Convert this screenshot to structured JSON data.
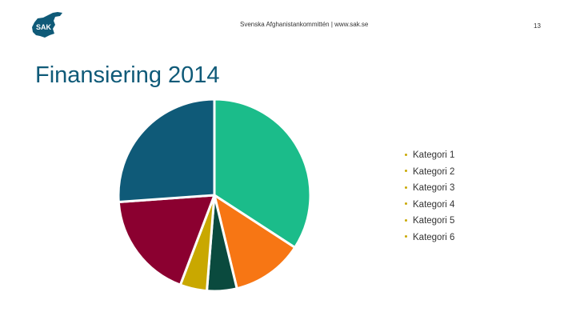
{
  "header": {
    "logo_text": "SAK",
    "org_text": "Svenska Afghanistankommittén | www.sak.se",
    "page_number": "13",
    "logo_color": "#0f5a78"
  },
  "slide": {
    "title": "Finansiering 2014"
  },
  "chart_data": {
    "type": "pie",
    "categories": [
      "Kategori 1",
      "Kategori 2",
      "Kategori 3",
      "Kategori 4",
      "Kategori 5",
      "Kategori 6"
    ],
    "values": [
      34,
      12,
      5,
      4.5,
      18,
      26
    ],
    "colors": [
      "#1bbc8a",
      "#f77614",
      "#0a4a3e",
      "#c9a800",
      "#8b0030",
      "#0f5a78"
    ],
    "start_angle_deg": 0,
    "direction": "clockwise",
    "legend_position": "right",
    "legend_bullet_color": "#c9a800"
  }
}
